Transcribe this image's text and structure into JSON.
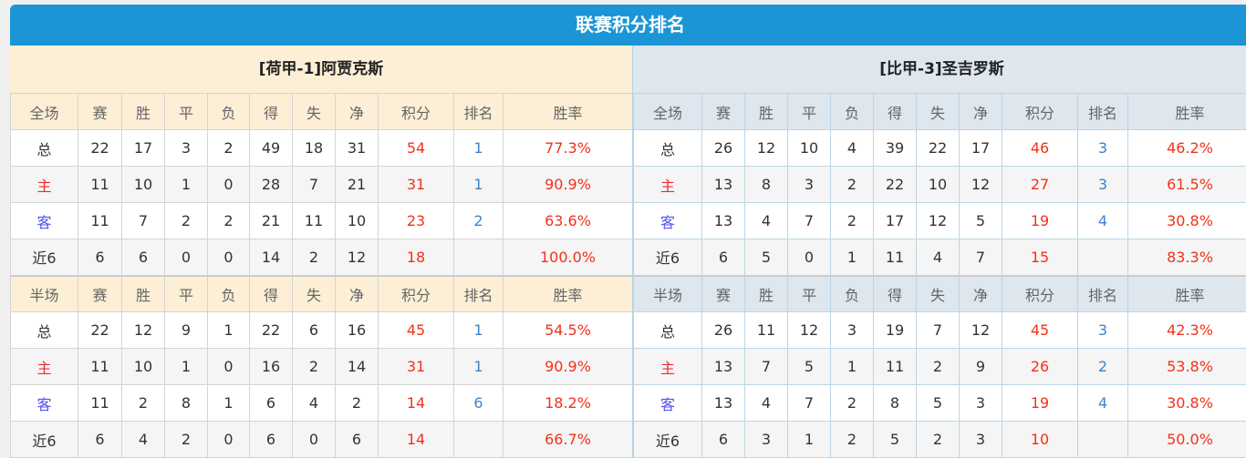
{
  "title": "联赛积分排名",
  "headers": {
    "full": "全场",
    "half": "半场",
    "cols": [
      "赛",
      "胜",
      "平",
      "负",
      "得",
      "失",
      "净",
      "积分",
      "排名",
      "胜率"
    ]
  },
  "teams": [
    {
      "name": "[荷甲-1]阿贾克斯",
      "full": [
        [
          "总",
          "22",
          "17",
          "3",
          "2",
          "49",
          "18",
          "31",
          "54",
          "1",
          "77.3%"
        ],
        [
          "主",
          "11",
          "10",
          "1",
          "0",
          "28",
          "7",
          "21",
          "31",
          "1",
          "90.9%"
        ],
        [
          "客",
          "11",
          "7",
          "2",
          "2",
          "21",
          "11",
          "10",
          "23",
          "2",
          "63.6%"
        ],
        [
          "近6",
          "6",
          "6",
          "0",
          "0",
          "14",
          "2",
          "12",
          "18",
          "",
          "100.0%"
        ]
      ],
      "half": [
        [
          "总",
          "22",
          "12",
          "9",
          "1",
          "22",
          "6",
          "16",
          "45",
          "1",
          "54.5%"
        ],
        [
          "主",
          "11",
          "10",
          "1",
          "0",
          "16",
          "2",
          "14",
          "31",
          "1",
          "90.9%"
        ],
        [
          "客",
          "11",
          "2",
          "8",
          "1",
          "6",
          "4",
          "2",
          "14",
          "6",
          "18.2%"
        ],
        [
          "近6",
          "6",
          "4",
          "2",
          "0",
          "6",
          "0",
          "6",
          "14",
          "",
          "66.7%"
        ]
      ]
    },
    {
      "name": "[比甲-3]圣吉罗斯",
      "full": [
        [
          "总",
          "26",
          "12",
          "10",
          "4",
          "39",
          "22",
          "17",
          "46",
          "3",
          "46.2%"
        ],
        [
          "主",
          "13",
          "8",
          "3",
          "2",
          "22",
          "10",
          "12",
          "27",
          "3",
          "61.5%"
        ],
        [
          "客",
          "13",
          "4",
          "7",
          "2",
          "17",
          "12",
          "5",
          "19",
          "4",
          "30.8%"
        ],
        [
          "近6",
          "6",
          "5",
          "0",
          "1",
          "11",
          "4",
          "7",
          "15",
          "",
          "83.3%"
        ]
      ],
      "half": [
        [
          "总",
          "26",
          "11",
          "12",
          "3",
          "19",
          "7",
          "12",
          "45",
          "3",
          "42.3%"
        ],
        [
          "主",
          "13",
          "7",
          "5",
          "1",
          "11",
          "2",
          "9",
          "26",
          "2",
          "53.8%"
        ],
        [
          "客",
          "13",
          "4",
          "7",
          "2",
          "8",
          "5",
          "3",
          "19",
          "4",
          "30.8%"
        ],
        [
          "近6",
          "6",
          "3",
          "1",
          "2",
          "5",
          "2",
          "3",
          "10",
          "",
          "50.0%"
        ]
      ]
    }
  ]
}
